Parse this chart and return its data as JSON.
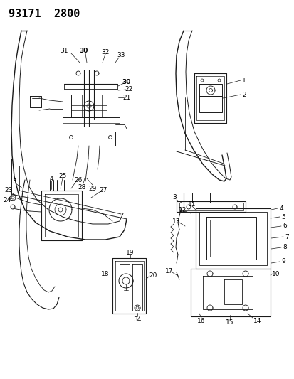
{
  "title": "93171  2800",
  "bg_color": "#ffffff",
  "fig_width": 4.14,
  "fig_height": 5.33,
  "dpi": 100,
  "line_color": "#1a1a1a"
}
